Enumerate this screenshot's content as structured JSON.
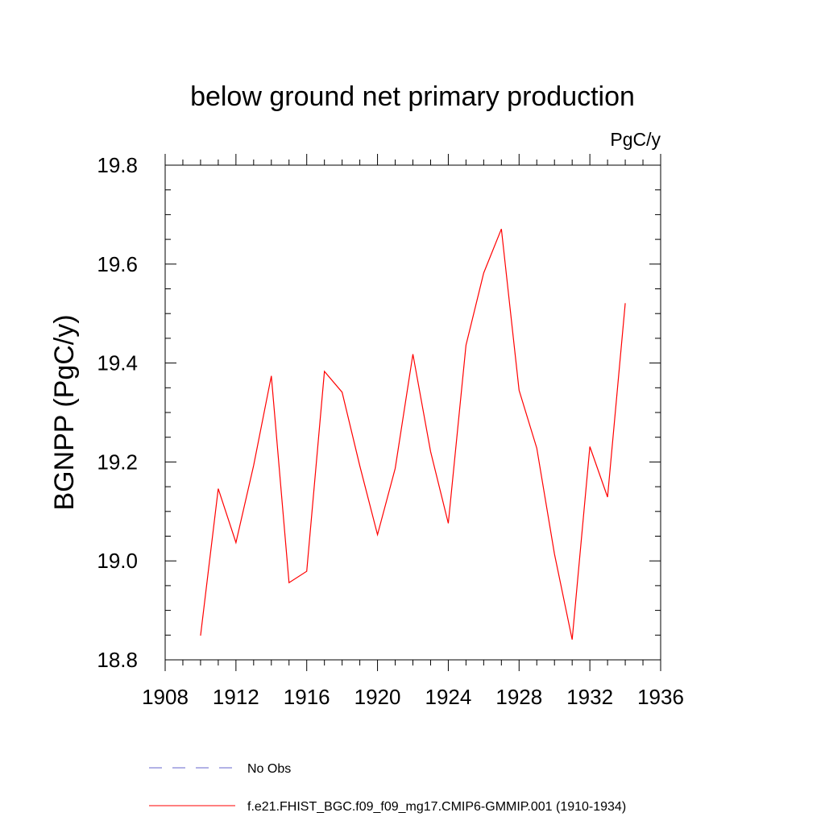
{
  "chart_data": {
    "type": "line",
    "title": "below ground net primary production",
    "units_label": "PgC/y",
    "ylabel": "BGNPP  (PgC/y)",
    "xlabel": "",
    "xlim": [
      1908,
      1936
    ],
    "ylim": [
      18.8,
      19.8
    ],
    "xticks": [
      1908,
      1912,
      1916,
      1920,
      1924,
      1928,
      1932,
      1936
    ],
    "xtick_labels": [
      "1908",
      "1912",
      "1916",
      "1920",
      "1924",
      "1928",
      "1932",
      "1936"
    ],
    "yticks": [
      18.8,
      19.0,
      19.2,
      19.4,
      19.6,
      19.8
    ],
    "ytick_labels": [
      "18.8",
      "19.0",
      "19.2",
      "19.4",
      "19.6",
      "19.8"
    ],
    "grid": false,
    "series": [
      {
        "name": "f.e21.FHIST_BGC.f09_f09_mg17.CMIP6-GMMIP.001 (1910-1934)",
        "color": "#ff0000",
        "style": "solid",
        "x": [
          1910,
          1911,
          1912,
          1913,
          1914,
          1915,
          1916,
          1917,
          1918,
          1919,
          1920,
          1921,
          1922,
          1923,
          1924,
          1925,
          1926,
          1927,
          1928,
          1929,
          1930,
          1931,
          1932,
          1933,
          1934
        ],
        "values": [
          18.849,
          19.146,
          19.037,
          19.193,
          19.374,
          18.956,
          18.979,
          19.383,
          19.341,
          19.192,
          19.053,
          19.187,
          19.418,
          19.221,
          19.076,
          19.436,
          19.582,
          19.671,
          19.345,
          19.228,
          19.014,
          18.841,
          19.231,
          19.129,
          19.521
        ]
      }
    ],
    "legend": {
      "placement": "bottom-left",
      "entries": [
        {
          "label": "No Obs",
          "color": "#6666cc",
          "style": "dashed"
        },
        {
          "label": "f.e21.FHIST_BGC.f09_f09_mg17.CMIP6-GMMIP.001 (1910-1934)",
          "color": "#ff0000",
          "style": "solid"
        }
      ]
    }
  }
}
